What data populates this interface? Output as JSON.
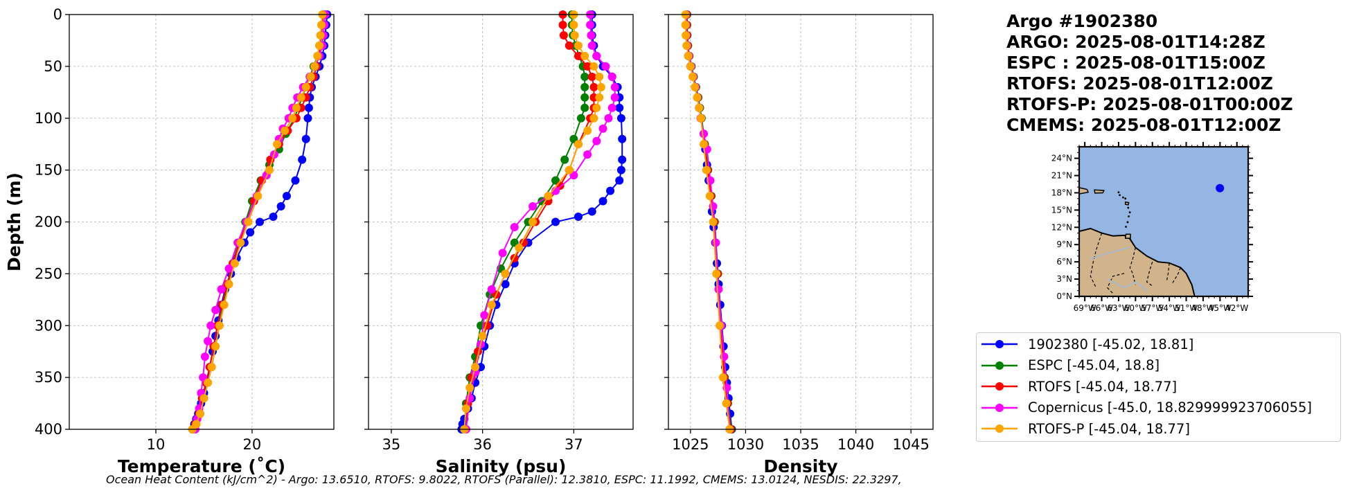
{
  "chart_data": [
    {
      "type": "line",
      "xlabel": "Temperature (˚C)",
      "ylabel": "Depth (m)",
      "xlim": [
        1,
        28.5
      ],
      "ylim": [
        400,
        0
      ],
      "xticks": [
        10,
        20
      ],
      "yticks": [
        0,
        50,
        100,
        150,
        200,
        250,
        300,
        350,
        400
      ],
      "grid": true,
      "series": [
        {
          "name": "1902380",
          "color": "#0000ff",
          "x": [
            27.8,
            27.7,
            27.6,
            27.5,
            27.3,
            27.0,
            26.6,
            26.2,
            26.0,
            25.9,
            25.8,
            25.6,
            25.2,
            24.5,
            23.6,
            23.0,
            22.2,
            20.8,
            19.8,
            19.2,
            18.4,
            17.8,
            17.2,
            16.8,
            16.5,
            16.2,
            15.9,
            15.6,
            15.3,
            15.0,
            14.7,
            14.4,
            14.2,
            14.0,
            13.8
          ],
          "y": [
            0,
            10,
            20,
            30,
            40,
            50,
            60,
            70,
            80,
            90,
            100,
            120,
            140,
            160,
            175,
            185,
            195,
            200,
            210,
            220,
            235,
            250,
            265,
            280,
            295,
            310,
            325,
            340,
            355,
            365,
            375,
            385,
            390,
            395,
            400
          ]
        },
        {
          "name": "ESPC",
          "color": "#008000",
          "x": [
            27.4,
            27.3,
            27.2,
            27.0,
            26.8,
            26.4,
            26.0,
            25.6,
            25.2,
            24.8,
            24.4,
            23.5,
            22.8,
            21.8,
            20.9,
            20.0,
            19.3,
            18.6,
            18.0,
            17.5,
            17.0,
            16.6,
            16.2,
            15.8,
            15.4,
            15.0,
            14.6,
            14.2,
            13.8
          ],
          "y": [
            0,
            10,
            20,
            30,
            40,
            50,
            60,
            70,
            80,
            90,
            100,
            115,
            130,
            145,
            160,
            180,
            200,
            220,
            240,
            260,
            280,
            300,
            320,
            340,
            355,
            370,
            385,
            395,
            400
          ]
        },
        {
          "name": "RTOFS",
          "color": "#ff0000",
          "x": [
            27.4,
            27.3,
            27.2,
            27.1,
            26.9,
            26.7,
            26.4,
            26.0,
            25.6,
            25.1,
            24.6,
            23.7,
            22.8,
            21.9,
            21.0,
            20.2,
            19.4,
            18.7,
            18.0,
            17.4,
            16.9,
            16.4,
            16.0,
            15.6,
            15.2,
            14.8,
            14.5,
            14.1,
            13.8
          ],
          "y": [
            0,
            10,
            20,
            30,
            40,
            50,
            60,
            70,
            80,
            90,
            100,
            112,
            125,
            140,
            160,
            180,
            200,
            220,
            240,
            260,
            280,
            300,
            320,
            340,
            355,
            370,
            385,
            395,
            400
          ]
        },
        {
          "name": "Copernicus",
          "color": "#ff00ff",
          "x": [
            27.6,
            27.5,
            27.4,
            27.3,
            27.0,
            26.5,
            26.0,
            25.3,
            24.7,
            24.2,
            23.8,
            23.2,
            22.8,
            22.3,
            21.5,
            20.5,
            19.4,
            18.5,
            17.6,
            16.8,
            16.2,
            15.7,
            15.4,
            15.1,
            14.9,
            14.7,
            14.5,
            14.3,
            14.1
          ],
          "y": [
            0,
            10,
            20,
            30,
            40,
            50,
            60,
            70,
            80,
            90,
            100,
            110,
            120,
            135,
            155,
            175,
            200,
            220,
            245,
            265,
            285,
            300,
            315,
            330,
            350,
            365,
            380,
            390,
            400
          ]
        },
        {
          "name": "RTOFS-P",
          "color": "#ffa500",
          "x": [
            27.3,
            27.2,
            27.1,
            27.0,
            26.8,
            26.5,
            26.1,
            25.6,
            25.1,
            24.6,
            24.2,
            23.4,
            22.6,
            21.8,
            20.6,
            19.6,
            18.8,
            18.2,
            17.6,
            17.1,
            16.6,
            16.2,
            15.8,
            15.4,
            15.0,
            14.6,
            14.2,
            13.8
          ],
          "y": [
            0,
            10,
            20,
            30,
            40,
            50,
            60,
            70,
            80,
            90,
            100,
            112,
            125,
            150,
            175,
            200,
            220,
            240,
            260,
            280,
            300,
            320,
            340,
            355,
            370,
            385,
            395,
            400
          ]
        }
      ]
    },
    {
      "type": "line",
      "xlabel": "Salinity (psu)",
      "ylabel": "",
      "xlim": [
        34.75,
        37.65
      ],
      "ylim": [
        400,
        0
      ],
      "xticks": [
        35,
        36,
        37
      ],
      "grid": true,
      "series": [
        {
          "name": "1902380",
          "color": "#0000ff",
          "x": [
            37.2,
            37.2,
            37.2,
            37.22,
            37.25,
            37.32,
            37.42,
            37.48,
            37.5,
            37.5,
            37.52,
            37.53,
            37.53,
            37.52,
            37.5,
            37.4,
            37.32,
            37.2,
            37.05,
            36.8,
            36.5,
            36.35,
            36.25,
            36.15,
            36.08,
            36.02,
            35.98,
            35.92,
            35.88,
            35.84,
            35.8,
            35.78,
            35.77
          ],
          "y": [
            0,
            10,
            20,
            30,
            40,
            50,
            60,
            70,
            80,
            90,
            100,
            120,
            140,
            150,
            160,
            170,
            180,
            190,
            195,
            200,
            220,
            240,
            260,
            280,
            300,
            320,
            340,
            355,
            370,
            380,
            390,
            395,
            400
          ]
        },
        {
          "name": "ESPC",
          "color": "#008000",
          "x": [
            36.98,
            36.98,
            36.99,
            37.02,
            37.06,
            37.1,
            37.12,
            37.12,
            37.12,
            37.12,
            37.08,
            37.0,
            36.9,
            36.8,
            36.65,
            36.5,
            36.35,
            36.2,
            36.08,
            35.98,
            35.92,
            35.86,
            35.82,
            35.8
          ],
          "y": [
            0,
            10,
            20,
            30,
            40,
            50,
            60,
            70,
            80,
            90,
            100,
            120,
            140,
            160,
            180,
            200,
            220,
            245,
            270,
            300,
            330,
            350,
            375,
            400
          ]
        },
        {
          "name": "RTOFS",
          "color": "#ff0000",
          "x": [
            36.88,
            36.88,
            36.89,
            36.95,
            37.05,
            37.15,
            37.2,
            37.22,
            37.22,
            37.22,
            37.18,
            37.05,
            36.95,
            36.85,
            36.72,
            36.58,
            36.45,
            36.35,
            36.25,
            36.15,
            36.05,
            35.95,
            35.88,
            35.84,
            35.82
          ],
          "y": [
            0,
            10,
            20,
            30,
            40,
            50,
            60,
            70,
            80,
            90,
            100,
            125,
            150,
            165,
            180,
            200,
            220,
            235,
            250,
            270,
            300,
            325,
            350,
            375,
            400
          ]
        },
        {
          "name": "Copernicus",
          "color": "#ff00ff",
          "x": [
            37.18,
            37.18,
            37.19,
            37.2,
            37.25,
            37.35,
            37.42,
            37.45,
            37.45,
            37.42,
            37.38,
            37.32,
            37.25,
            37.15,
            37.0,
            36.8,
            36.55,
            36.35,
            36.22,
            36.1,
            36.02,
            35.98,
            35.92,
            35.86,
            35.82
          ],
          "y": [
            0,
            10,
            20,
            30,
            40,
            50,
            60,
            70,
            80,
            90,
            100,
            110,
            122,
            135,
            155,
            170,
            185,
            205,
            230,
            265,
            290,
            318,
            345,
            370,
            400
          ]
        },
        {
          "name": "RTOFS-P",
          "color": "#ffa500",
          "x": [
            37.0,
            37.0,
            37.01,
            37.05,
            37.12,
            37.22,
            37.28,
            37.3,
            37.28,
            37.25,
            37.22,
            37.15,
            37.05,
            36.95,
            36.72,
            36.55,
            36.4,
            36.25,
            36.1,
            36.0,
            35.92,
            35.86,
            35.82,
            35.8
          ],
          "y": [
            0,
            10,
            20,
            30,
            40,
            50,
            60,
            70,
            80,
            90,
            100,
            112,
            125,
            150,
            175,
            200,
            225,
            250,
            280,
            310,
            340,
            360,
            380,
            400
          ]
        }
      ]
    },
    {
      "type": "line",
      "xlabel": "Density",
      "ylabel": "",
      "xlim": [
        1023,
        1047
      ],
      "ylim": [
        400,
        0
      ],
      "xticks": [
        1025,
        1030,
        1035,
        1040,
        1045
      ],
      "grid": true,
      "series": [
        {
          "name": "1902380",
          "color": "#0000ff",
          "x": [
            1024.6,
            1024.6,
            1024.65,
            1024.7,
            1024.8,
            1025.0,
            1025.25,
            1025.5,
            1025.7,
            1025.85,
            1026.0,
            1026.2,
            1026.35,
            1026.5,
            1026.65,
            1026.8,
            1026.95,
            1027.1,
            1027.25,
            1027.4,
            1027.55,
            1027.7,
            1027.85,
            1028.0,
            1028.15,
            1028.3,
            1028.45,
            1028.6,
            1028.75
          ],
          "y": [
            0,
            10,
            20,
            30,
            40,
            50,
            60,
            70,
            80,
            90,
            100,
            115,
            130,
            145,
            160,
            175,
            190,
            205,
            220,
            240,
            260,
            280,
            300,
            320,
            340,
            355,
            370,
            385,
            400
          ]
        },
        {
          "name": "ESPC",
          "color": "#008000",
          "x": [
            1024.7,
            1024.7,
            1024.72,
            1024.78,
            1024.9,
            1025.1,
            1025.3,
            1025.5,
            1025.7,
            1025.85,
            1026.0,
            1026.3,
            1026.6,
            1026.9,
            1027.2,
            1027.5,
            1027.8,
            1028.1,
            1028.4,
            1028.7
          ],
          "y": [
            0,
            10,
            20,
            30,
            40,
            50,
            60,
            70,
            80,
            90,
            100,
            125,
            150,
            175,
            200,
            250,
            300,
            350,
            375,
            400
          ]
        },
        {
          "name": "RTOFS",
          "color": "#ff0000",
          "x": [
            1024.65,
            1024.65,
            1024.68,
            1024.75,
            1024.88,
            1025.05,
            1025.25,
            1025.45,
            1025.65,
            1025.8,
            1025.95,
            1026.25,
            1026.55,
            1026.85,
            1027.15,
            1027.45,
            1027.75,
            1028.05,
            1028.35,
            1028.65
          ],
          "y": [
            0,
            10,
            20,
            30,
            40,
            50,
            60,
            70,
            80,
            90,
            100,
            125,
            150,
            175,
            200,
            250,
            300,
            350,
            375,
            400
          ]
        },
        {
          "name": "Copernicus",
          "color": "#ff00ff",
          "x": [
            1024.6,
            1024.6,
            1024.63,
            1024.7,
            1024.85,
            1025.05,
            1025.25,
            1025.45,
            1025.62,
            1025.78,
            1025.92,
            1026.2,
            1026.5,
            1026.8,
            1027.05,
            1027.3,
            1027.55,
            1027.8,
            1028.05,
            1028.3,
            1028.55
          ],
          "y": [
            0,
            10,
            20,
            30,
            40,
            50,
            60,
            70,
            80,
            90,
            100,
            115,
            130,
            160,
            185,
            220,
            265,
            300,
            330,
            360,
            400
          ]
        },
        {
          "name": "RTOFS-P",
          "color": "#ffa500",
          "x": [
            1024.55,
            1024.55,
            1024.58,
            1024.65,
            1024.8,
            1025.0,
            1025.2,
            1025.4,
            1025.6,
            1025.78,
            1025.95,
            1026.2,
            1026.45,
            1026.75,
            1027.05,
            1027.35,
            1027.65,
            1027.95,
            1028.25,
            1028.55
          ],
          "y": [
            0,
            10,
            20,
            30,
            40,
            50,
            60,
            70,
            80,
            90,
            100,
            125,
            150,
            175,
            200,
            250,
            300,
            350,
            375,
            400
          ]
        }
      ]
    }
  ],
  "titles": [
    "Argo #1902380",
    "ARGO: 2025-08-01T14:28Z",
    "ESPC : 2025-08-01T15:00Z",
    "RTOFS: 2025-08-01T12:00Z",
    "RTOFS-P: 2025-08-01T00:00Z",
    "CMEMS: 2025-08-01T12:00Z"
  ],
  "legend": [
    {
      "label": "1902380 [-45.02, 18.81]",
      "color": "#0000ff"
    },
    {
      "label": "ESPC [-45.04, 18.8]",
      "color": "#008000"
    },
    {
      "label": "RTOFS [-45.04, 18.77]",
      "color": "#ff0000"
    },
    {
      "label": "Copernicus [-45.0, 18.829999923706055]",
      "color": "#ff00ff"
    },
    {
      "label": "RTOFS-P [-45.04, 18.77]",
      "color": "#ffa500"
    }
  ],
  "map": {
    "lat_labels": [
      "24°N",
      "21°N",
      "18°N",
      "15°N",
      "12°N",
      "9°N",
      "6°N",
      "3°N",
      "0°N"
    ],
    "lon_labels": [
      "69°W",
      "66°W",
      "63°W",
      "60°W",
      "57°W",
      "54°W",
      "51°W",
      "48°W",
      "45°W",
      "42°W"
    ],
    "ocean_color": "#95b6e2",
    "land_color": "#d2b48c",
    "marker_color": "#0000ff",
    "marker_lon": -45.02,
    "marker_lat": 18.81
  },
  "footer": "Ocean Heat Content (kJ/cm^2) - Argo: 13.6510,  RTOFS: 9.8022,  RTOFS (Parallel): 12.3810,  ESPC: 11.1992,  CMEMS: 13.0124,  NESDIS: 22.3297,"
}
